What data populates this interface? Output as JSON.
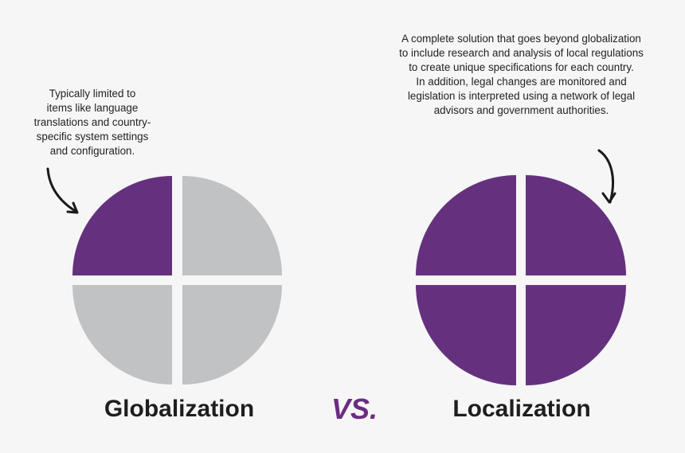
{
  "left_panel": {
    "note_lines": [
      "Typically limited to",
      "items like language",
      "translations and country-",
      "specific system settings",
      "and configuration."
    ],
    "label": "Globalization",
    "quadrants_filled": 1,
    "quadrants_total": 4
  },
  "right_panel": {
    "note_lines": [
      "A complete solution that goes beyond globalization",
      "to include research and analysis of local regulations",
      "to create unique specifications for each country.",
      "In addition, legal changes are monitored and",
      "legislation is interpreted using a network of legal",
      "advisors and government authorities."
    ],
    "label": "Localization",
    "quadrants_filled": 4,
    "quadrants_total": 4
  },
  "vs_label": "VS.",
  "colors": {
    "filled": "#65317e",
    "empty": "#c1c2c4",
    "background": "#f6f6f6",
    "vs_accent": "#6b2d82",
    "arrow": "#1a1a1a"
  }
}
